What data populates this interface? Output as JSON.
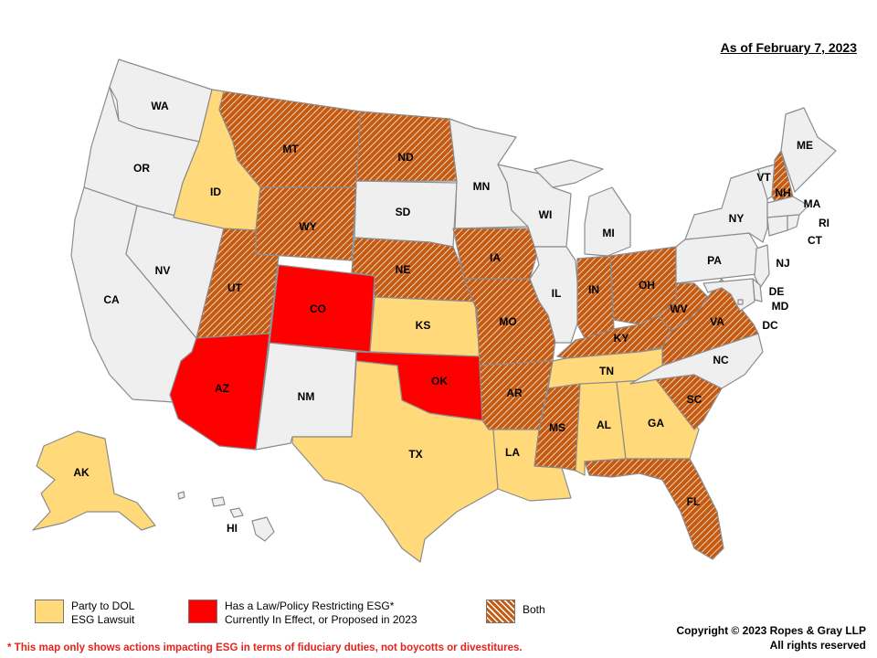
{
  "heading": "As of February 7, 2023",
  "colors": {
    "none": "#efefef",
    "lawsuit": "#ffd97a",
    "law": "#ff0000",
    "both_base": "#c55a11",
    "both_stripe": "#ffffff",
    "border": "#8c8c8c",
    "footnote": "#e6221c"
  },
  "states": {
    "WA": {
      "label": "WA",
      "status": "none"
    },
    "OR": {
      "label": "OR",
      "status": "none"
    },
    "CA": {
      "label": "CA",
      "status": "none"
    },
    "NV": {
      "label": "NV",
      "status": "none"
    },
    "ID": {
      "label": "ID",
      "status": "lawsuit"
    },
    "MT": {
      "label": "MT",
      "status": "both"
    },
    "WY": {
      "label": "WY",
      "status": "both"
    },
    "UT": {
      "label": "UT",
      "status": "both"
    },
    "AZ": {
      "label": "AZ",
      "status": "law"
    },
    "CO": {
      "label": "CO",
      "status": "law"
    },
    "NM": {
      "label": "NM",
      "status": "none"
    },
    "ND": {
      "label": "ND",
      "status": "both"
    },
    "SD": {
      "label": "SD",
      "status": "none"
    },
    "NE": {
      "label": "NE",
      "status": "both"
    },
    "KS": {
      "label": "KS",
      "status": "lawsuit"
    },
    "OK": {
      "label": "OK",
      "status": "law"
    },
    "TX": {
      "label": "TX",
      "status": "lawsuit"
    },
    "MN": {
      "label": "MN",
      "status": "none"
    },
    "IA": {
      "label": "IA",
      "status": "both"
    },
    "MO": {
      "label": "MO",
      "status": "both"
    },
    "AR": {
      "label": "AR",
      "status": "both"
    },
    "LA": {
      "label": "LA",
      "status": "lawsuit"
    },
    "WI": {
      "label": "WI",
      "status": "none"
    },
    "IL": {
      "label": "IL",
      "status": "none"
    },
    "MI": {
      "label": "MI",
      "status": "none"
    },
    "IN": {
      "label": "IN",
      "status": "both"
    },
    "OH": {
      "label": "OH",
      "status": "both"
    },
    "KY": {
      "label": "KY",
      "status": "both"
    },
    "TN": {
      "label": "TN",
      "status": "lawsuit"
    },
    "MS": {
      "label": "MS",
      "status": "both"
    },
    "AL": {
      "label": "AL",
      "status": "lawsuit"
    },
    "GA": {
      "label": "GA",
      "status": "lawsuit"
    },
    "FL": {
      "label": "FL",
      "status": "both"
    },
    "SC": {
      "label": "SC",
      "status": "both"
    },
    "NC": {
      "label": "NC",
      "status": "none"
    },
    "VA": {
      "label": "VA",
      "status": "both"
    },
    "WV": {
      "label": "WV",
      "status": "both"
    },
    "PA": {
      "label": "PA",
      "status": "none"
    },
    "NY": {
      "label": "NY",
      "status": "none"
    },
    "VT": {
      "label": "VT",
      "status": "none"
    },
    "NH": {
      "label": "NH",
      "status": "both"
    },
    "ME": {
      "label": "ME",
      "status": "none"
    },
    "MA": {
      "label": "MA",
      "status": "none"
    },
    "RI": {
      "label": "RI",
      "status": "none"
    },
    "CT": {
      "label": "CT",
      "status": "none"
    },
    "NJ": {
      "label": "NJ",
      "status": "none"
    },
    "DE": {
      "label": "DE",
      "status": "none"
    },
    "MD": {
      "label": "MD",
      "status": "none"
    },
    "DC": {
      "label": "DC",
      "status": "none"
    },
    "AK": {
      "label": "AK",
      "status": "lawsuit"
    },
    "HI": {
      "label": "HI",
      "status": "none"
    }
  },
  "legend": {
    "lawsuit": {
      "line1": "Party to DOL",
      "line2": "ESG Lawsuit"
    },
    "law": {
      "line1": "Has a Law/Policy Restricting ESG*",
      "line2": "Currently In Effect, or Proposed in 2023"
    },
    "both": {
      "line1": "Both"
    }
  },
  "footnote": "* This map only shows actions impacting ESG in terms of fiduciary duties, not boycotts or divestitures.",
  "copyright": {
    "line1": "Copyright © 2023 Ropes & Gray LLP",
    "line2": "All rights reserved"
  }
}
